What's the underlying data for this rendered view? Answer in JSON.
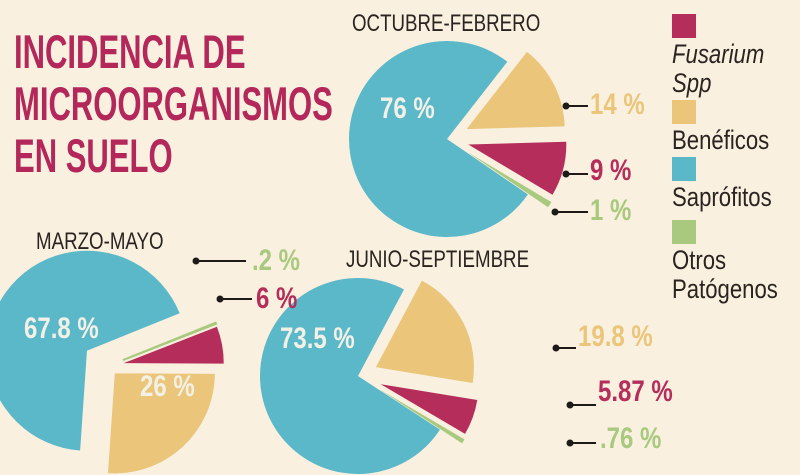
{
  "title": [
    "INCIDENCIA DE",
    "MICROORGANISMOS",
    "EN SUELO"
  ],
  "colors": {
    "fusarium": "#b52d5b",
    "beneficos": "#eac57a",
    "saprofitos": "#5bb8c9",
    "otros": "#a8c97e",
    "title": "#b3275a"
  },
  "legend": [
    {
      "key": "fusarium",
      "label": "Fusarium",
      "label2": "Spp",
      "italic": true
    },
    {
      "key": "beneficos",
      "label": "Benéficos"
    },
    {
      "key": "saprofitos",
      "label": "Saprófitos"
    },
    {
      "key": "otros",
      "label": "Otros",
      "label2": "Patógenos"
    }
  ],
  "chart_data": [
    {
      "type": "pie",
      "title": "OCTUBRE-FEBRERO",
      "slices": [
        {
          "key": "beneficos",
          "name": "Benéficos",
          "value": 14,
          "label": "14 %"
        },
        {
          "key": "fusarium",
          "name": "Fusarium Spp",
          "value": 9,
          "label": "9 %"
        },
        {
          "key": "otros",
          "name": "Otros Patógenos",
          "value": 1,
          "label": "1 %"
        },
        {
          "key": "saprofitos",
          "name": "Saprófitos",
          "value": 76,
          "label": "76 %"
        }
      ]
    },
    {
      "type": "pie",
      "title": "MARZO-MAYO",
      "slices": [
        {
          "key": "otros",
          "name": "Otros Patógenos",
          "value": 0.2,
          "label": ".2 %"
        },
        {
          "key": "fusarium",
          "name": "Fusarium Spp",
          "value": 6,
          "label": "6 %"
        },
        {
          "key": "beneficos",
          "name": "Benéficos",
          "value": 26,
          "label": "26 %"
        },
        {
          "key": "saprofitos",
          "name": "Saprófitos",
          "value": 67.8,
          "label": "67.8 %"
        }
      ]
    },
    {
      "type": "pie",
      "title": "JUNIO-SEPTIEMBRE",
      "slices": [
        {
          "key": "beneficos",
          "name": "Benéficos",
          "value": 19.8,
          "label": "19.8 %"
        },
        {
          "key": "fusarium",
          "name": "Fusarium Spp",
          "value": 5.87,
          "label": "5.87 %"
        },
        {
          "key": "otros",
          "name": "Otros Patógenos",
          "value": 0.76,
          "label": ".76 %"
        },
        {
          "key": "saprofitos",
          "name": "Saprófitos",
          "value": 73.5,
          "label": "73.5 %"
        }
      ]
    }
  ]
}
